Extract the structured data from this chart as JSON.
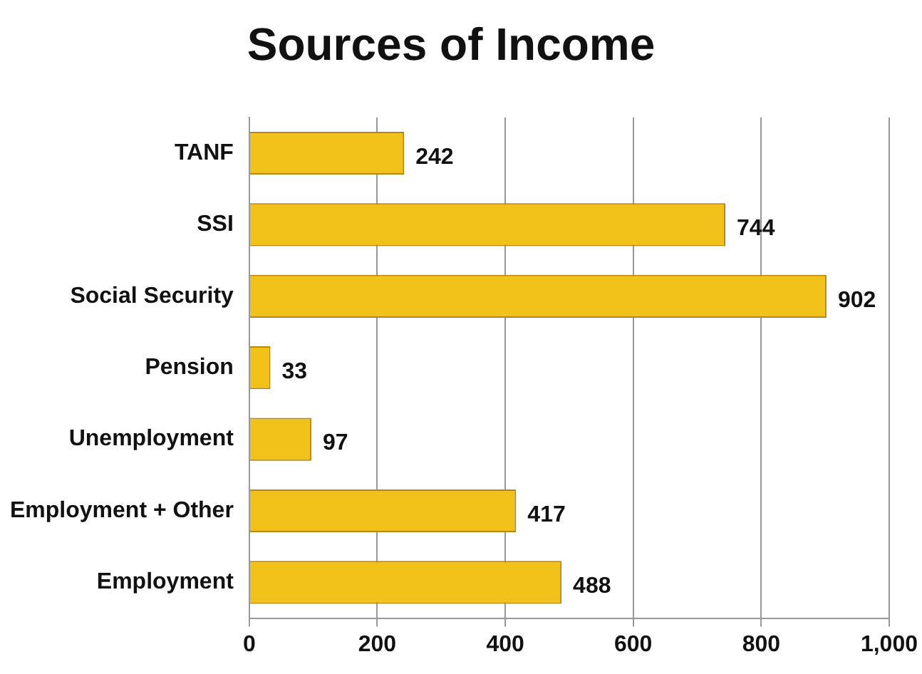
{
  "chart_data": {
    "type": "bar",
    "orientation": "horizontal",
    "title": "Sources of Income",
    "categories": [
      "TANF",
      "SSI",
      "Social Security",
      "Pension",
      "Unemployment",
      "Employment + Other",
      "Employment"
    ],
    "values": [
      242,
      744,
      902,
      33,
      97,
      417,
      488
    ],
    "color": "#f2c21b",
    "xlim": [
      0,
      1000
    ],
    "xticks": [
      0,
      200,
      400,
      600,
      800,
      {
        "value": 1000,
        "label": "1,000"
      }
    ],
    "grid": "x",
    "data_labels": true,
    "legend": false
  }
}
